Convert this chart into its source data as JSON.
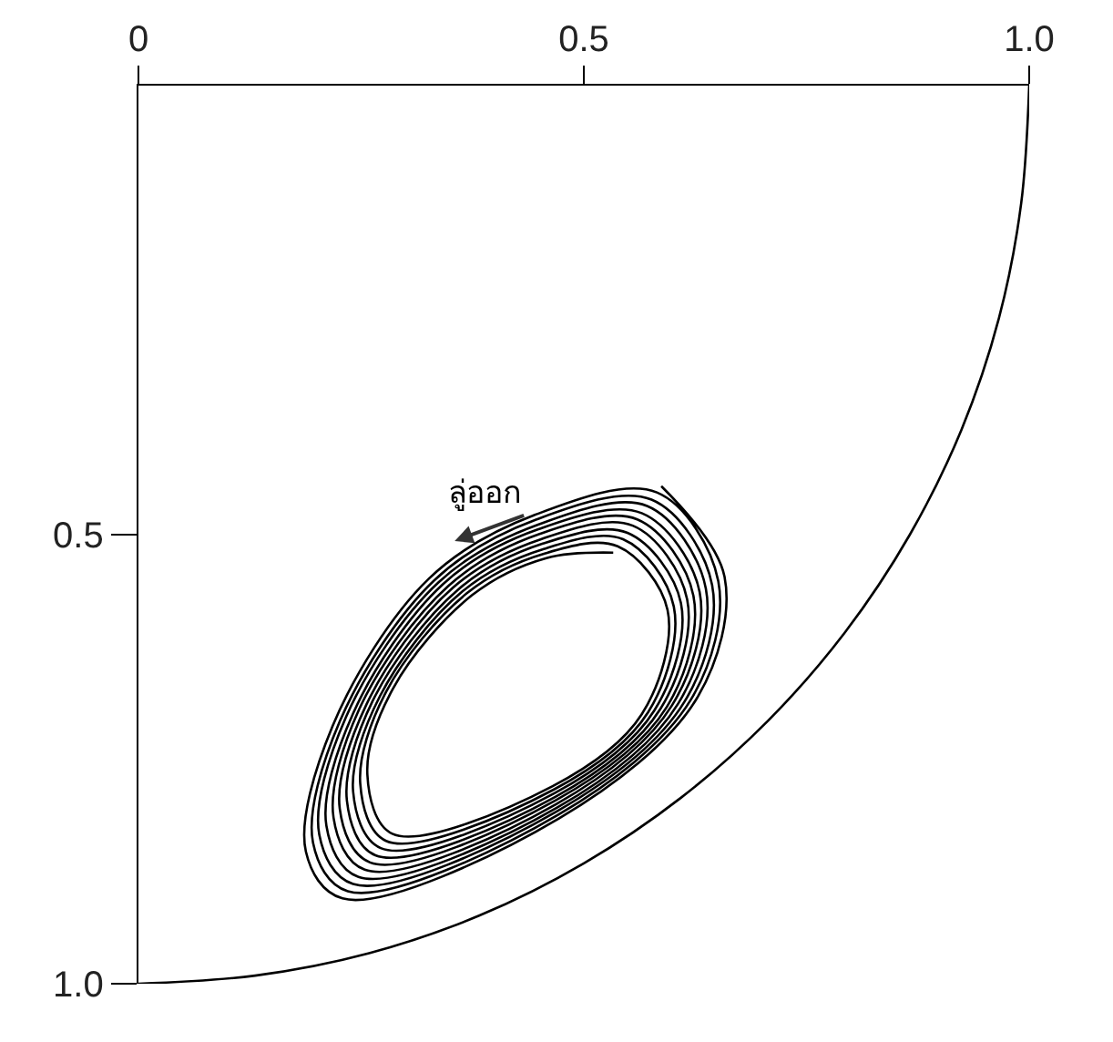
{
  "chart_data": {
    "type": "line",
    "xlim": [
      0,
      1
    ],
    "ylim": [
      1,
      0
    ],
    "xticks": [
      0,
      0.5,
      {
        "value": 1,
        "label": "1.0"
      }
    ],
    "yticks": [
      0.5,
      {
        "value": 1,
        "label": "1.0"
      }
    ],
    "annotations": [
      "ลู่ออก"
    ],
    "series": [
      {
        "color": "#000000",
        "x": [
          1,
          0.991,
          0.966,
          0.924,
          0.866,
          0.793,
          0.707,
          0.609,
          0.5,
          0.383,
          0.259,
          0.131,
          0
        ],
        "values": [
          0,
          0.131,
          0.259,
          0.383,
          0.5,
          0.609,
          0.707,
          0.793,
          0.866,
          0.924,
          0.966,
          0.991,
          1
        ]
      },
      {
        "color": "#000000",
        "x": [
          0.533,
          0.458,
          0.375,
          0.286,
          0.257,
          0.285,
          0.465,
          0.565,
          0.594,
          0.538,
          0.456,
          0.369,
          0.278,
          0.249,
          0.278,
          0.466,
          0.572,
          0.601,
          0.544,
          0.455,
          0.364,
          0.271,
          0.241,
          0.272,
          0.467,
          0.579,
          0.609,
          0.549,
          0.454,
          0.359,
          0.263,
          0.234,
          0.266,
          0.468,
          0.586,
          0.616,
          0.555,
          0.452,
          0.353,
          0.256,
          0.226,
          0.26,
          0.468,
          0.593,
          0.623,
          0.56,
          0.451,
          0.348,
          0.248,
          0.219,
          0.254,
          0.469,
          0.599,
          0.63,
          0.565,
          0.449,
          0.342,
          0.241,
          0.211,
          0.247,
          0.47,
          0.606,
          0.637,
          0.571,
          0.448,
          0.337,
          0.233,
          0.203,
          0.241,
          0.47,
          0.613,
          0.644,
          0.576,
          0.447,
          0.332,
          0.226,
          0.196,
          0.235,
          0.471,
          0.62,
          0.651,
          0.582,
          0.445,
          0.326,
          0.218,
          0.188,
          0.229,
          0.472,
          0.627,
          0.658,
          0.587
        ],
        "values": [
          0.52,
          0.526,
          0.567,
          0.671,
          0.767,
          0.833,
          0.78,
          0.7,
          0.584,
          0.513,
          0.521,
          0.565,
          0.675,
          0.777,
          0.841,
          0.784,
          0.698,
          0.58,
          0.505,
          0.516,
          0.563,
          0.68,
          0.786,
          0.849,
          0.788,
          0.696,
          0.576,
          0.498,
          0.51,
          0.561,
          0.685,
          0.796,
          0.857,
          0.792,
          0.694,
          0.572,
          0.49,
          0.505,
          0.559,
          0.689,
          0.805,
          0.865,
          0.796,
          0.692,
          0.568,
          0.483,
          0.499,
          0.557,
          0.694,
          0.815,
          0.873,
          0.8,
          0.69,
          0.564,
          0.476,
          0.494,
          0.555,
          0.699,
          0.824,
          0.881,
          0.804,
          0.688,
          0.56,
          0.468,
          0.489,
          0.553,
          0.703,
          0.834,
          0.889,
          0.808,
          0.686,
          0.556,
          0.461,
          0.483,
          0.551,
          0.708,
          0.843,
          0.897,
          0.812,
          0.684,
          0.552,
          0.453,
          0.478,
          0.549,
          0.713,
          0.853,
          0.905,
          0.816,
          0.682,
          0.547,
          0.446
        ]
      }
    ]
  }
}
